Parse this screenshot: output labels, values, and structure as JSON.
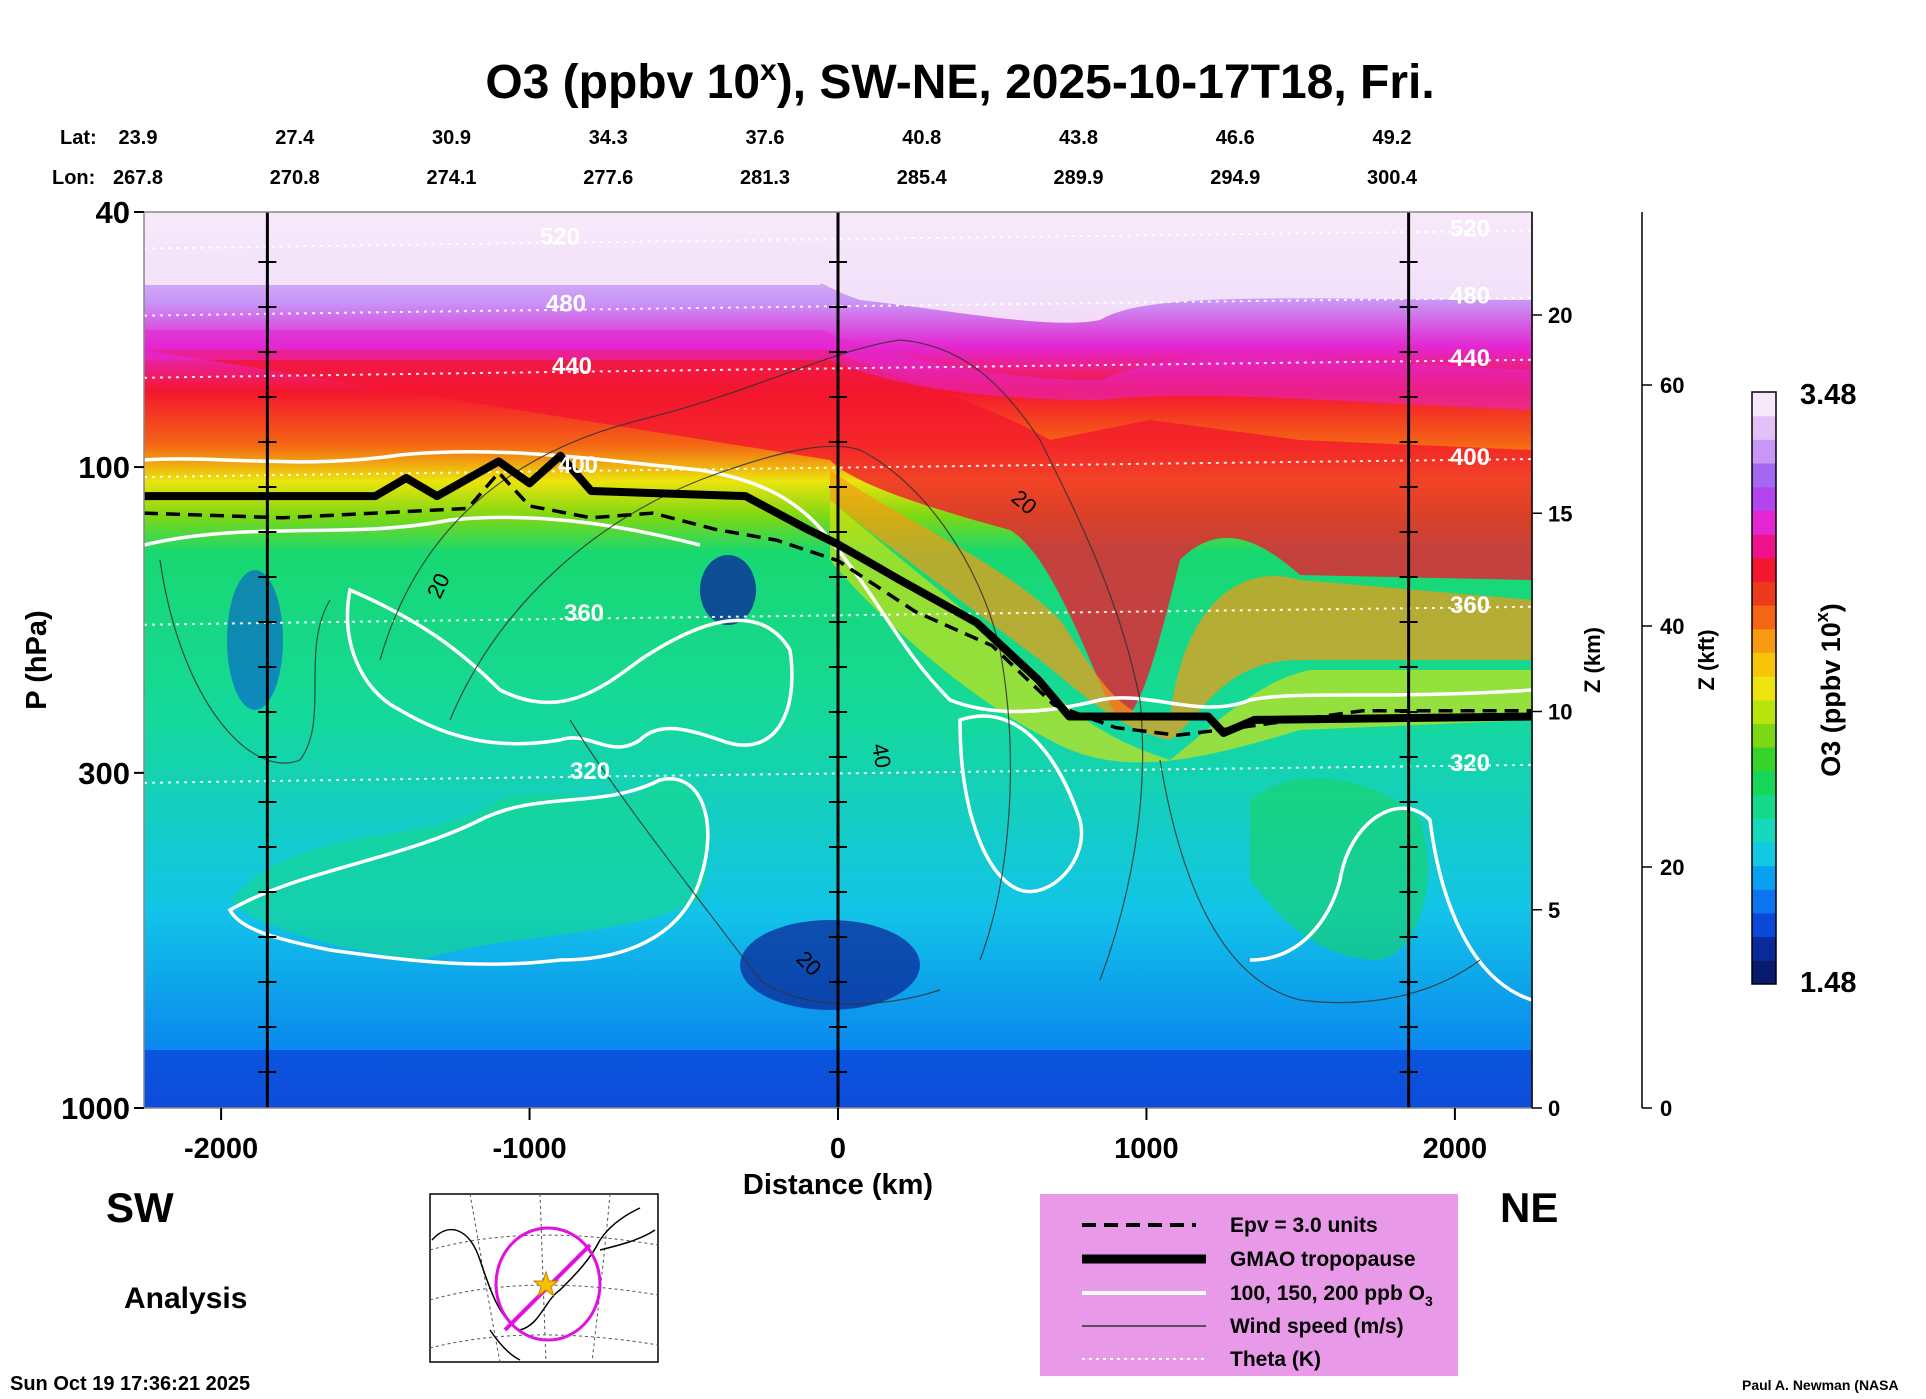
{
  "chart_data": {
    "type": "heatmap",
    "title_prefix": "O3 (ppbv 10",
    "title_sup": "x",
    "title_suffix": "), SW-NE, 2025-10-17T18, Fri.",
    "xlabel": "Distance (km)",
    "ylabel": "P (hPa)",
    "y2label": "Z (km)",
    "y3label": "Z (kft)",
    "colorbar_label": "O3 (ppbv 10",
    "colorbar_label_sup": "x",
    "colorbar_label_suffix": ")",
    "xlim": [
      -2250,
      2250
    ],
    "ylim_hpa": [
      1000,
      40
    ],
    "x_ticks": [
      {
        "value": -2000,
        "label": "-2000"
      },
      {
        "value": -1000,
        "label": "-1000"
      },
      {
        "value": 0,
        "label": "0"
      },
      {
        "value": 1000,
        "label": "1000"
      },
      {
        "value": 2000,
        "label": "2000"
      }
    ],
    "p_ticks": [
      {
        "value": 40,
        "label": "40"
      },
      {
        "value": 100,
        "label": "100"
      },
      {
        "value": 300,
        "label": "300"
      },
      {
        "value": 1000,
        "label": "1000"
      }
    ],
    "z_km_ticks": [
      {
        "value": 0,
        "label": "0"
      },
      {
        "value": 5,
        "label": "5"
      },
      {
        "value": 10,
        "label": "10"
      },
      {
        "value": 15,
        "label": "15"
      },
      {
        "value": 20,
        "label": "20"
      }
    ],
    "z_kft_ticks": [
      {
        "value": 0,
        "label": "0"
      },
      {
        "value": 20,
        "label": "20"
      },
      {
        "value": 40,
        "label": "40"
      },
      {
        "value": 60,
        "label": "60"
      }
    ],
    "lat_label": "Lat:",
    "lon_label": "Lon:",
    "positions": [
      {
        "lat": "23.9",
        "lon": "267.8"
      },
      {
        "lat": "27.4",
        "lon": "270.8"
      },
      {
        "lat": "30.9",
        "lon": "274.1"
      },
      {
        "lat": "34.3",
        "lon": "277.6"
      },
      {
        "lat": "37.6",
        "lon": "281.3"
      },
      {
        "lat": "40.8",
        "lon": "285.4"
      },
      {
        "lat": "43.8",
        "lon": "289.9"
      },
      {
        "lat": "46.6",
        "lon": "294.9"
      },
      {
        "lat": "49.2",
        "lon": "300.4"
      }
    ],
    "colorbar": {
      "max_label": "3.48",
      "min_label": "1.48",
      "min": 1.48,
      "max": 3.48
    },
    "colors": [
      "#081a6e",
      "#0b2a9a",
      "#0a48d8",
      "#0b74ee",
      "#0aa2f0",
      "#12c9e4",
      "#15d9bc",
      "#15d98a",
      "#18d65a",
      "#36d42a",
      "#7cd814",
      "#b8e40e",
      "#ece40c",
      "#f7c40a",
      "#f89a12",
      "#f46614",
      "#ec3a1a",
      "#f4162e",
      "#f0128c",
      "#e426d2",
      "#b444ee",
      "#a468f2",
      "#c896f6",
      "#e4c0f8",
      "#f6e8fa"
    ],
    "tropopause_hpa": [
      {
        "x": -2250,
        "p": 111
      },
      {
        "x": -1500,
        "p": 111
      },
      {
        "x": -1400,
        "p": 104
      },
      {
        "x": -1300,
        "p": 111
      },
      {
        "x": -1100,
        "p": 98
      },
      {
        "x": -1000,
        "p": 106
      },
      {
        "x": -900,
        "p": 96
      },
      {
        "x": -800,
        "p": 109
      },
      {
        "x": -300,
        "p": 111
      },
      {
        "x": -100,
        "p": 125
      },
      {
        "x": 0,
        "p": 132
      },
      {
        "x": 200,
        "p": 150
      },
      {
        "x": 450,
        "p": 175
      },
      {
        "x": 650,
        "p": 215
      },
      {
        "x": 750,
        "p": 245
      },
      {
        "x": 1200,
        "p": 245
      },
      {
        "x": 1250,
        "p": 260
      },
      {
        "x": 1350,
        "p": 248
      },
      {
        "x": 2250,
        "p": 245
      }
    ],
    "epv_hpa": [
      {
        "x": -2250,
        "p": 118
      },
      {
        "x": -1800,
        "p": 120
      },
      {
        "x": -1500,
        "p": 118
      },
      {
        "x": -1200,
        "p": 116
      },
      {
        "x": -1100,
        "p": 102
      },
      {
        "x": -1000,
        "p": 115
      },
      {
        "x": -800,
        "p": 120
      },
      {
        "x": -600,
        "p": 118
      },
      {
        "x": -400,
        "p": 125
      },
      {
        "x": -200,
        "p": 130
      },
      {
        "x": 0,
        "p": 140
      },
      {
        "x": 250,
        "p": 168
      },
      {
        "x": 500,
        "p": 190
      },
      {
        "x": 700,
        "p": 235
      },
      {
        "x": 900,
        "p": 255
      },
      {
        "x": 1100,
        "p": 262
      },
      {
        "x": 1300,
        "p": 255
      },
      {
        "x": 1700,
        "p": 240
      },
      {
        "x": 2250,
        "p": 240
      }
    ],
    "theta_levels": [
      {
        "label": "320",
        "p": 300
      },
      {
        "label": "360",
        "p": 170
      },
      {
        "label": "400",
        "p": 100
      },
      {
        "label": "440",
        "p": 70
      },
      {
        "label": "480",
        "p": 56
      },
      {
        "label": "520",
        "p": 44
      }
    ],
    "wind_labels": [
      "20",
      "20",
      "20",
      "40"
    ],
    "direction_left": "SW",
    "direction_right": "NE",
    "analysis_label": "Analysis",
    "timestamp": "Sun Oct 19 17:36:21 2025",
    "credit": "Paul A. Newman (NASA",
    "legend": [
      {
        "label": "Epv = 3.0 units"
      },
      {
        "label": "GMAO tropopause"
      },
      {
        "label": "100, 150, 200 ppb O",
        "sub": "3"
      },
      {
        "label": "Wind speed (m/s)"
      },
      {
        "label": "Theta (K)"
      }
    ]
  }
}
